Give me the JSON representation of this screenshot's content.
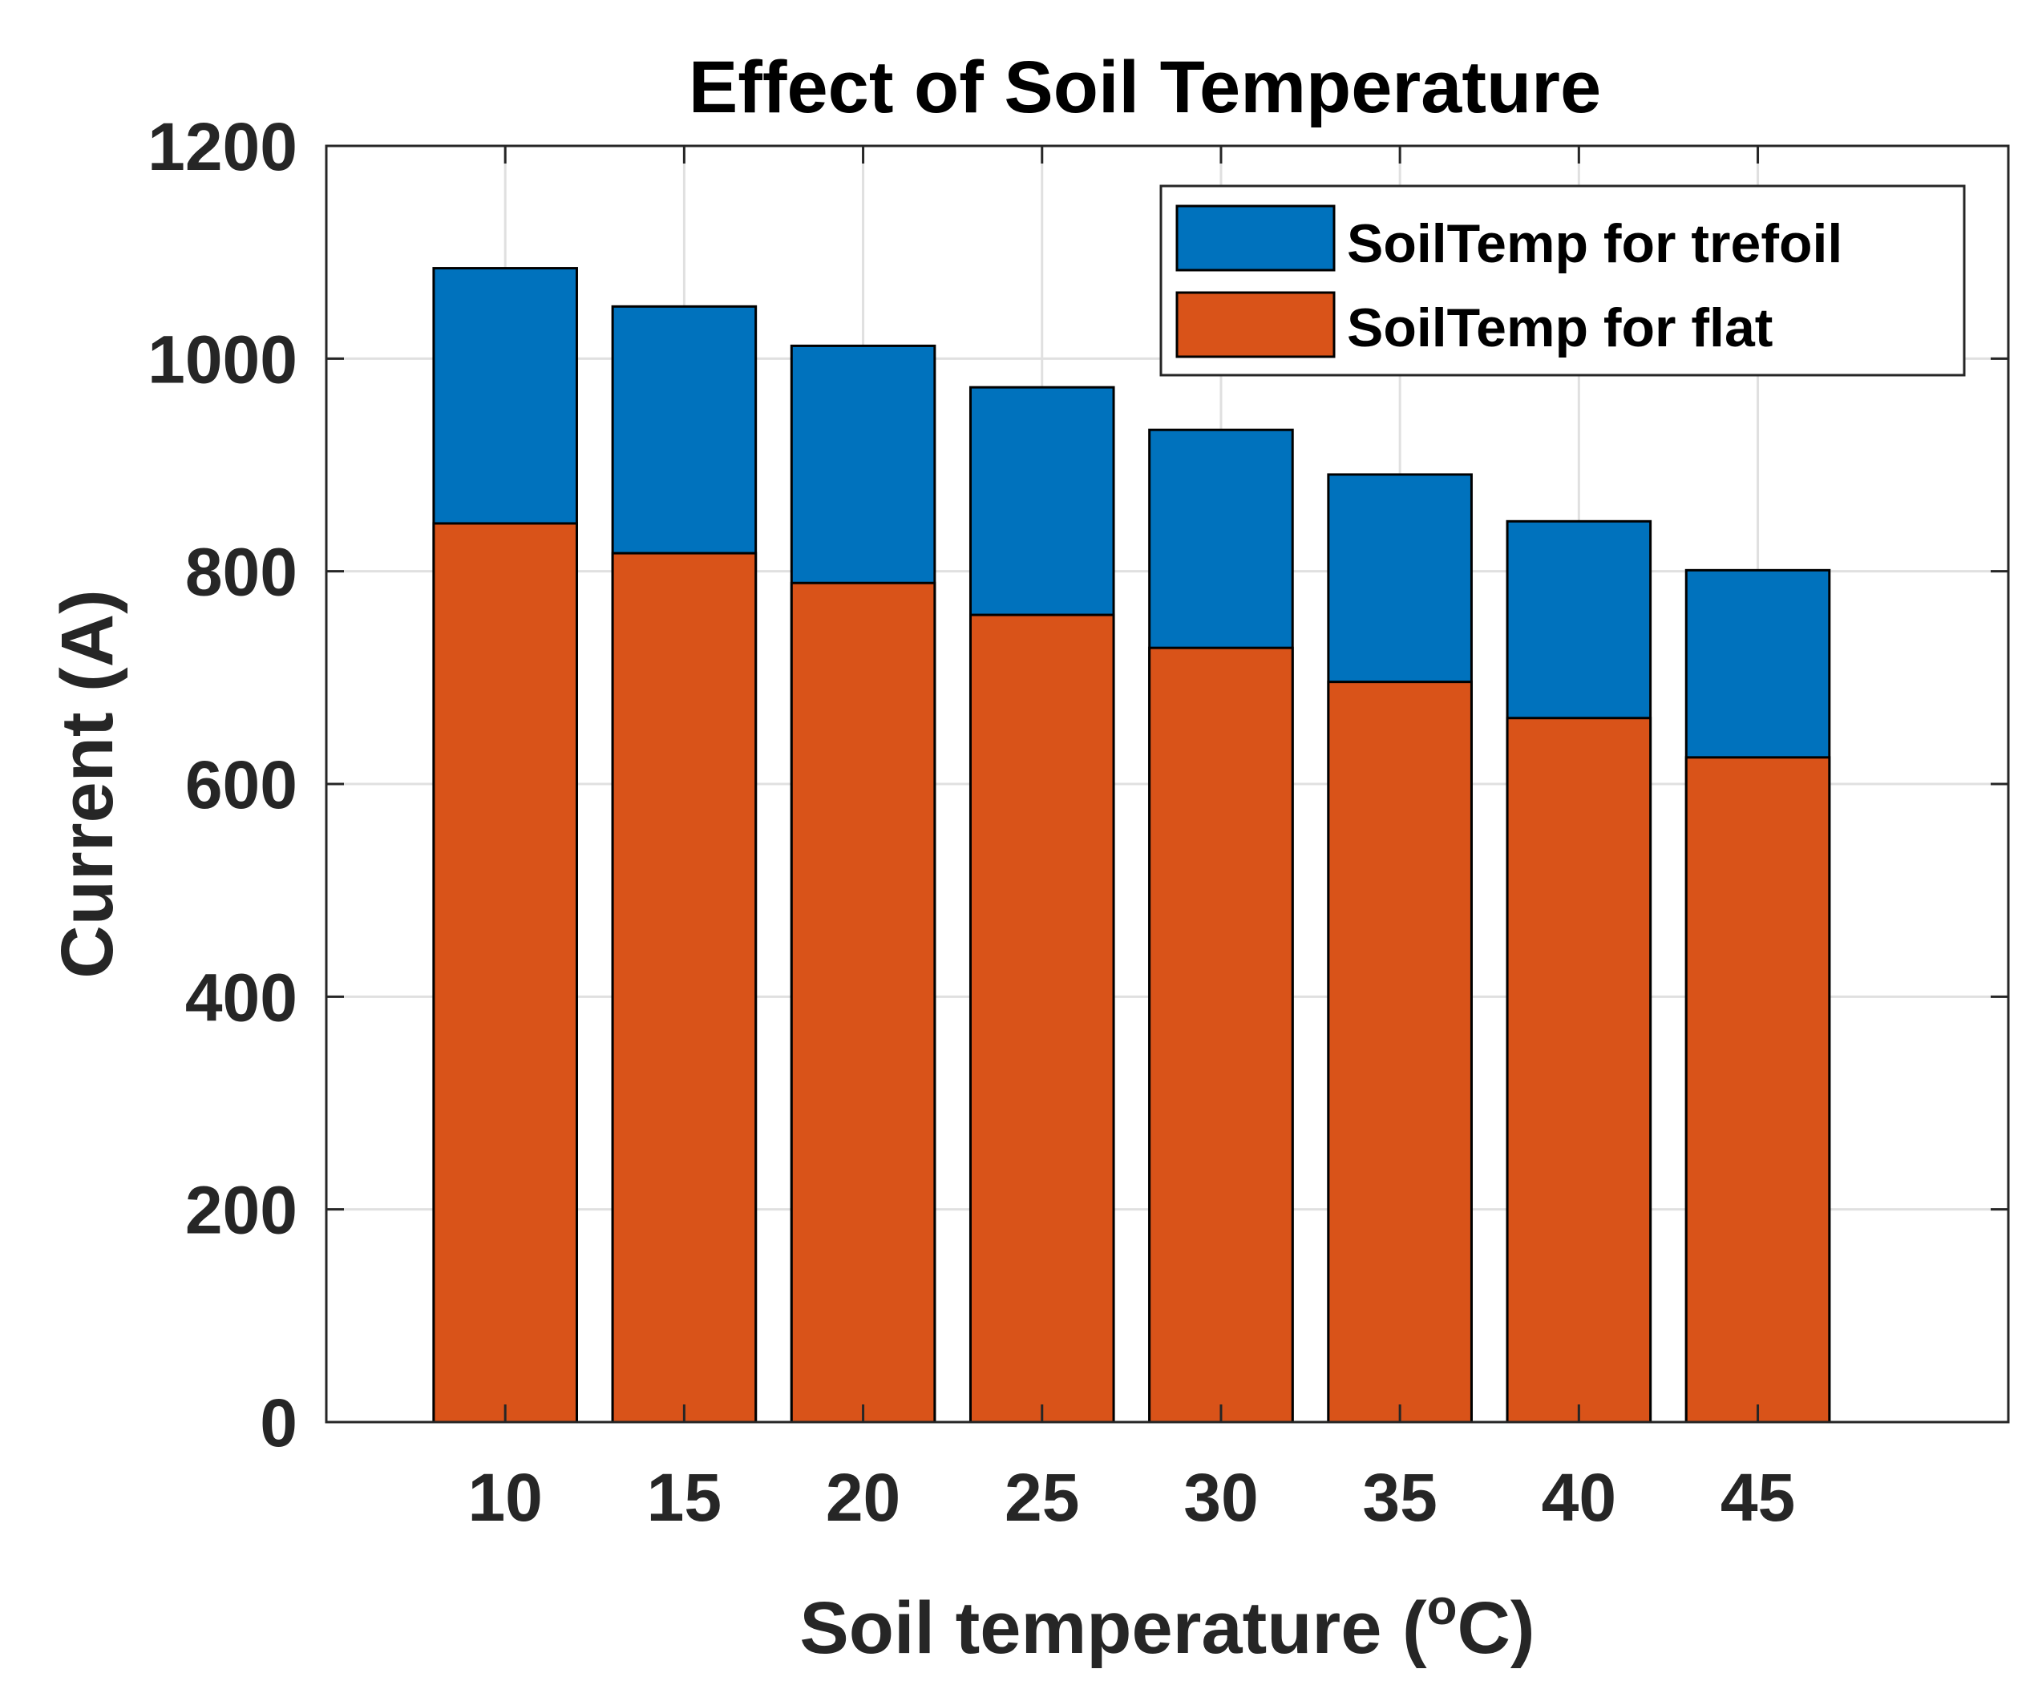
{
  "chart_data": {
    "type": "bar",
    "title": "Effect of Soil Temperature",
    "xlabel": "Soil temperature (",
    "xlabel_sup": "o",
    "xlabel_tail": "C)",
    "ylabel": "Current (A)",
    "categories": [
      "10",
      "15",
      "20",
      "25",
      "30",
      "35",
      "40",
      "45"
    ],
    "series": [
      {
        "name": "SoilTemp for trefoil",
        "color": "#0072BD",
        "values": [
          1085,
          1049,
          1012,
          973,
          933,
          891,
          847,
          801
        ]
      },
      {
        "name": "SoilTemp for flat",
        "color": "#D95319",
        "values": [
          845,
          817,
          789,
          759,
          728,
          696,
          662,
          625
        ]
      }
    ],
    "ylim": [
      0,
      1200
    ],
    "yticks": [
      0,
      200,
      400,
      600,
      800,
      1000,
      1200
    ],
    "xlim": [
      5,
      52
    ],
    "grid": true,
    "legend_position": "top-right"
  }
}
